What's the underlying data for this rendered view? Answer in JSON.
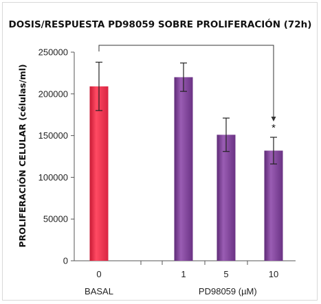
{
  "chart_data": {
    "type": "bar",
    "title": "DOSIS/RESPUESTA PD98059 SOBRE PROLIFERACIÓN (72h)",
    "ylabel": "PROLIFERACIÓN CELULAR (células/ml)",
    "xlabel": "",
    "ylim": [
      0,
      250000
    ],
    "yticks": [
      "0",
      "50000",
      "100000",
      "150000",
      "200000",
      "250000"
    ],
    "yticks_values": [
      0,
      50000,
      100000,
      150000,
      200000,
      250000
    ],
    "categories": [
      "0",
      "1",
      "5",
      "10"
    ],
    "values": [
      209000,
      220000,
      151000,
      132000
    ],
    "errors": [
      29000,
      17000,
      20000,
      16000
    ],
    "bar_colors": [
      "#f2334f",
      "#7a3d93",
      "#7a3d93",
      "#7a3d93"
    ],
    "group_labels": [
      {
        "text": "BASAL",
        "categories": [
          "0"
        ]
      },
      {
        "text": "PD98059 (µM)",
        "categories": [
          "1",
          "5",
          "10"
        ]
      }
    ],
    "significance": {
      "from": "0",
      "to": "10",
      "marker": "*"
    },
    "grid": false
  }
}
